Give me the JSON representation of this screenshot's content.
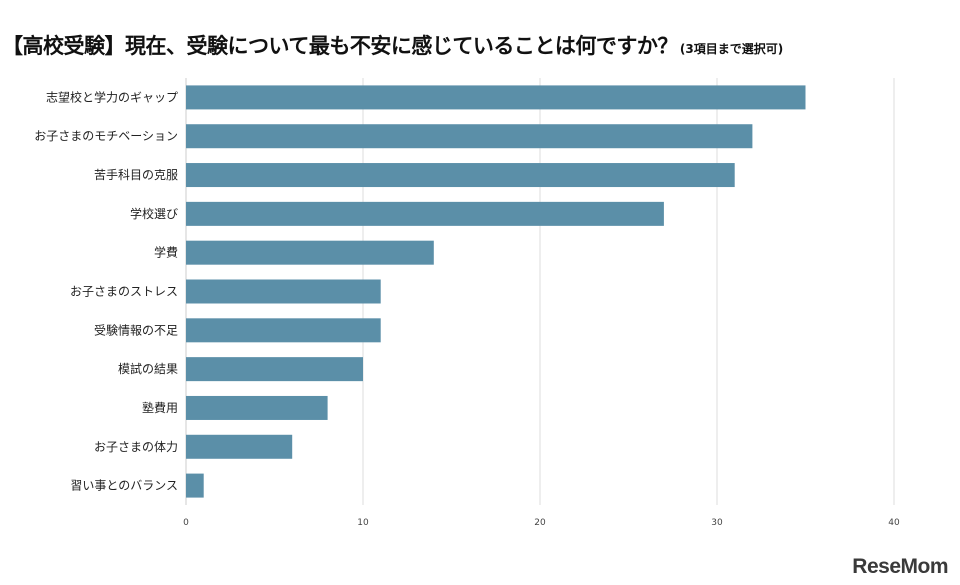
{
  "header": {
    "title": "【高校受験】現在、受験について最も不安に感じていることは何ですか？",
    "note": "(3項目まで選択可)"
  },
  "chart_data": {
    "type": "bar",
    "orientation": "horizontal",
    "categories": [
      "志望校と学力のギャップ",
      "お子さまのモチベーション",
      "苦手科目の克服",
      "学校選び",
      "学費",
      "お子さまのストレス",
      "受験情報の不足",
      "模試の結果",
      "塾費用",
      "お子さまの体力",
      "習い事とのバランス"
    ],
    "values": [
      35,
      32,
      31,
      27,
      14,
      11,
      11,
      10,
      8,
      6,
      1
    ],
    "xlim": [
      0,
      40
    ],
    "xticks": [
      "0",
      "10",
      "20",
      "30",
      "40"
    ],
    "grid": true,
    "bar_color": "#5b8fa8",
    "title": "【高校受験】現在、受験について最も不安に感じていることは何ですか？",
    "xlabel": "",
    "ylabel": ""
  },
  "watermark": "ReseMom"
}
